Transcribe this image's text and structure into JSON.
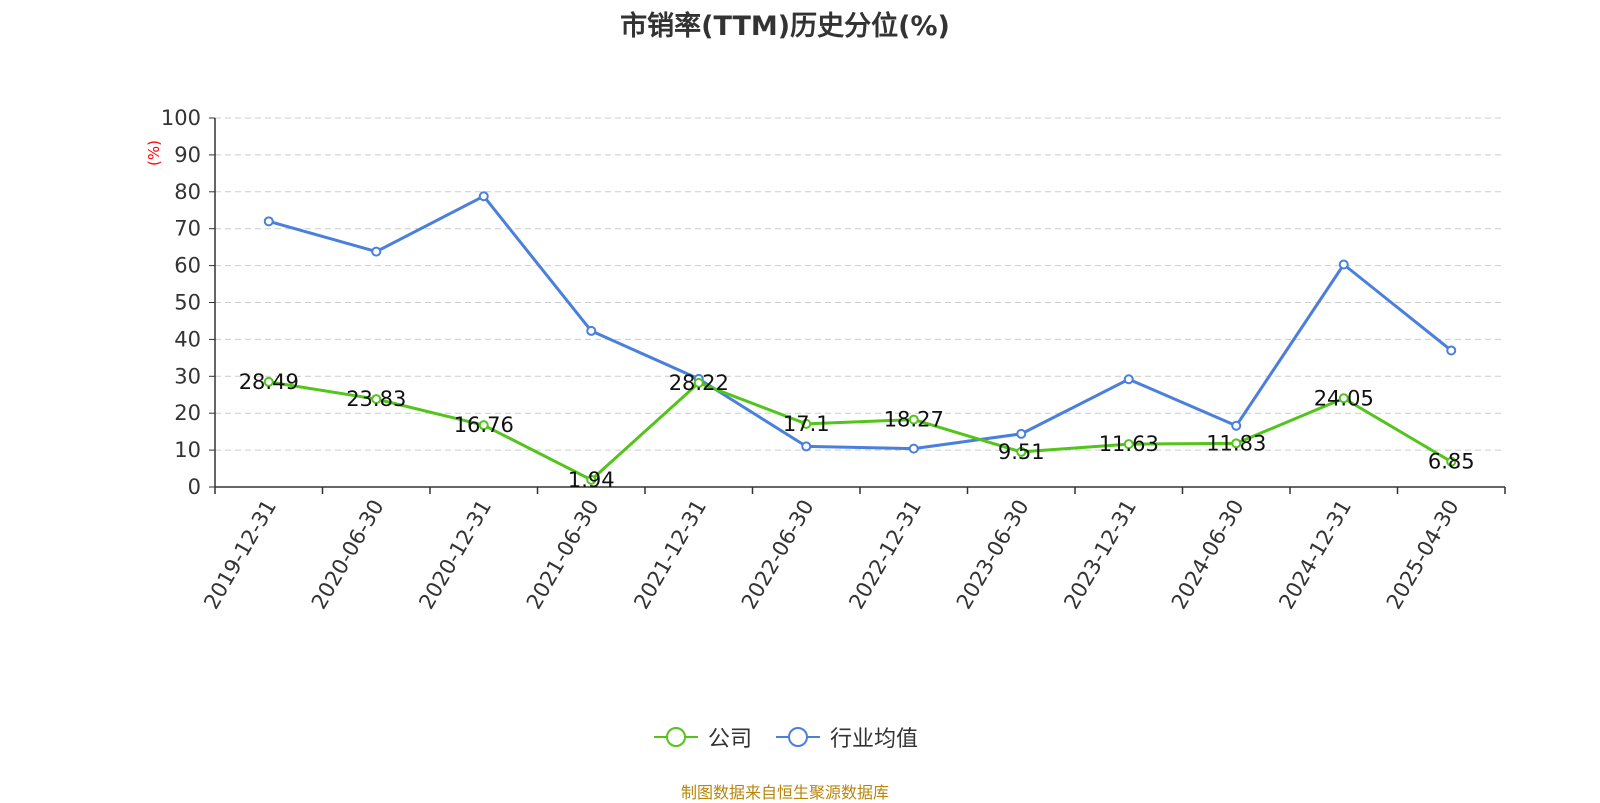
{
  "title": "市销率(TTM)历史分位(%)",
  "source_note": "制图数据来自恒生聚源数据库",
  "colors": {
    "company": "#52c41a",
    "industry": "#4a7fdc",
    "axis": "#333333",
    "grid": "#cccccc",
    "ylabel": "#ff0000",
    "source": "#b8860b"
  },
  "chart_data": {
    "type": "line",
    "title": "市销率(TTM)历史分位(%)",
    "xlabel": "",
    "ylabel": "(%)",
    "ylim": [
      0,
      100
    ],
    "yticks": [
      0,
      10,
      20,
      30,
      40,
      50,
      60,
      70,
      80,
      90,
      100
    ],
    "grid": true,
    "legend_position": "bottom",
    "categories": [
      "2019-12-31",
      "2020-06-30",
      "2020-12-31",
      "2021-06-30",
      "2021-12-31",
      "2022-06-30",
      "2022-12-31",
      "2023-06-30",
      "2023-12-31",
      "2024-06-30",
      "2024-12-31",
      "2025-04-30"
    ],
    "series": [
      {
        "name": "公司",
        "color": "#52c41a",
        "show_labels": true,
        "values": [
          28.49,
          23.83,
          16.76,
          1.94,
          28.22,
          17.1,
          18.27,
          9.51,
          11.63,
          11.83,
          24.05,
          6.85
        ]
      },
      {
        "name": "行业均值",
        "color": "#4a7fdc",
        "show_labels": false,
        "values": [
          72,
          63.8,
          78.8,
          42.3,
          29.3,
          11,
          10.4,
          14.4,
          29.2,
          16.6,
          60.3,
          37
        ]
      }
    ]
  }
}
